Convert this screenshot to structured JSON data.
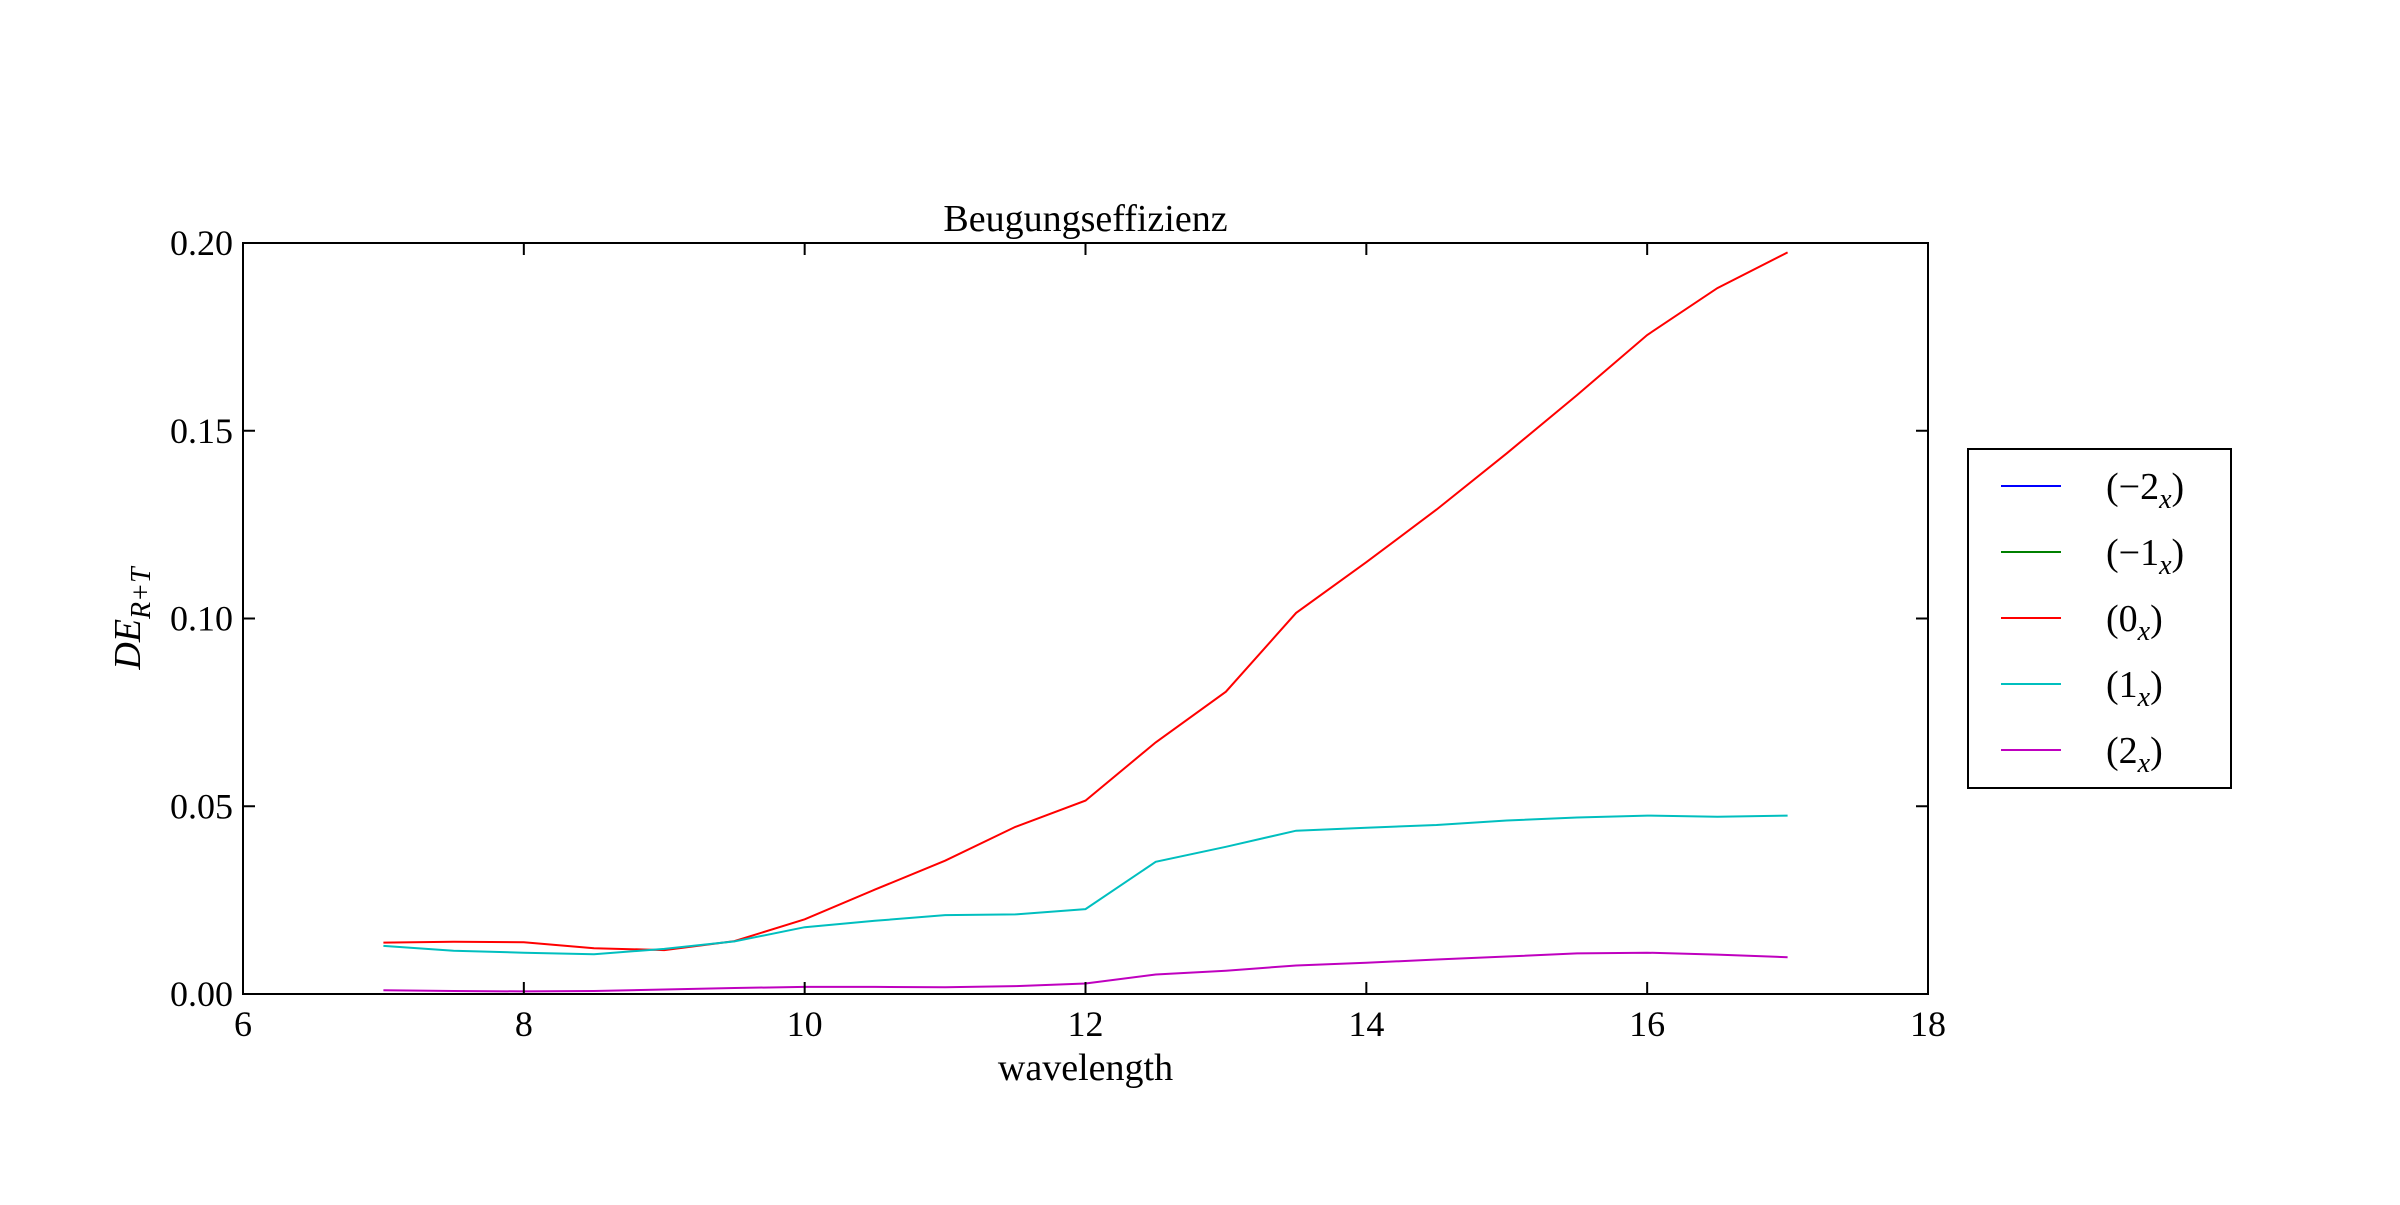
{
  "chart_data": {
    "type": "line",
    "title": "Beugungseffizienz",
    "xlabel": "wavelength",
    "ylabel": {
      "main": "DE",
      "sub": "R+T"
    },
    "xlim": [
      6,
      18
    ],
    "ylim": [
      0,
      0.2
    ],
    "x_ticks": [
      "6",
      "8",
      "10",
      "12",
      "14",
      "16",
      "18"
    ],
    "y_ticks": [
      "0.00",
      "0.05",
      "0.10",
      "0.15",
      "0.20"
    ],
    "grid": false,
    "legend_position": "right, outside",
    "x": [
      7,
      7.5,
      8,
      8.5,
      9,
      9.5,
      10,
      10.5,
      11,
      11.5,
      12,
      12.5,
      13,
      13.5,
      14,
      14.5,
      15,
      15.5,
      16,
      16.5,
      17
    ],
    "series": [
      {
        "name": "(−2",
        "sub": "x",
        "color": "#0000ff",
        "values": [
          0,
          0,
          0,
          0,
          0,
          0,
          0,
          0,
          0,
          0,
          0,
          0,
          0,
          0,
          0,
          0,
          0,
          0,
          0,
          0,
          0
        ]
      },
      {
        "name": "(−1",
        "sub": "x",
        "color": "#008000",
        "values": [
          0,
          0,
          0,
          0,
          0,
          0,
          0,
          0,
          0,
          0,
          0,
          0,
          0,
          0,
          0,
          0,
          0,
          0,
          0,
          0,
          0
        ]
      },
      {
        "name": "(0",
        "sub": "x",
        "color": "#ff0000",
        "values": [
          0.0137,
          0.0139,
          0.0138,
          0.0122,
          0.0117,
          0.0141,
          0.0199,
          0.0278,
          0.0355,
          0.0445,
          0.0515,
          0.067,
          0.0805,
          0.1015,
          0.115,
          0.129,
          0.144,
          0.1595,
          0.1755,
          0.188,
          0.1975
        ]
      },
      {
        "name": "(1",
        "sub": "x",
        "color": "#00bfbf",
        "values": [
          0.0128,
          0.0115,
          0.011,
          0.0106,
          0.012,
          0.014,
          0.0178,
          0.0195,
          0.021,
          0.0212,
          0.0226,
          0.0352,
          0.0392,
          0.0435,
          0.0443,
          0.045,
          0.0462,
          0.047,
          0.0475,
          0.0472,
          0.0475
        ]
      },
      {
        "name": "(2",
        "sub": "x",
        "color": "#bf00bf",
        "values": [
          0.001,
          0.0008,
          0.0007,
          0.0008,
          0.0012,
          0.0016,
          0.0019,
          0.0019,
          0.0018,
          0.0021,
          0.0028,
          0.0052,
          0.0062,
          0.0076,
          0.0083,
          0.0092,
          0.01,
          0.0108,
          0.011,
          0.0105,
          0.0098
        ]
      }
    ]
  }
}
